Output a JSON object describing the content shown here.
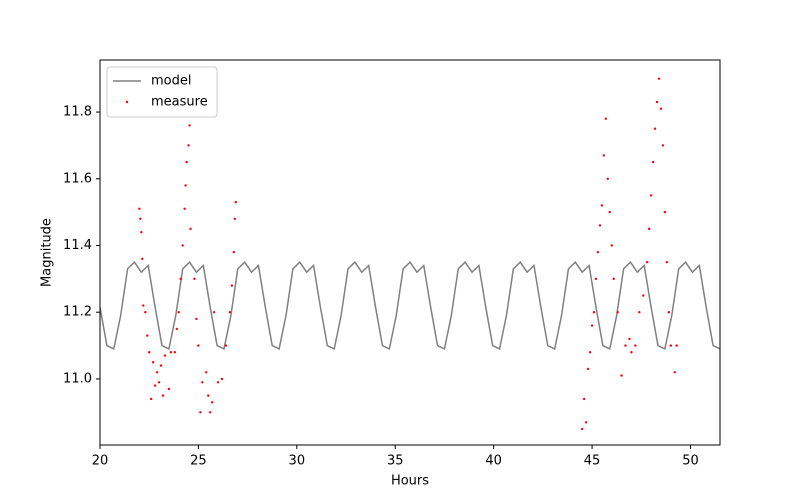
{
  "chart_data": {
    "type": "line",
    "xlabel": "Hours",
    "ylabel": "Magnitude",
    "xlim": [
      20,
      51.5
    ],
    "ylim": [
      10.802,
      11.956
    ],
    "xticks": [
      20,
      25,
      30,
      35,
      40,
      45,
      50
    ],
    "yticks": [
      {
        "value": 11.0,
        "label": "11.0"
      },
      {
        "value": 11.2,
        "label": "11.2"
      },
      {
        "value": 11.4,
        "label": "11.4"
      },
      {
        "value": 11.6,
        "label": "11.6"
      },
      {
        "value": 11.8,
        "label": "11.8"
      }
    ],
    "legend": "upper left",
    "series": [
      {
        "name": "model",
        "color": "#808080",
        "style": "line",
        "x": [
          20.0,
          20.35,
          20.7,
          21.05,
          21.4,
          21.75,
          22.1,
          22.45,
          22.8,
          23.15,
          23.5,
          23.85,
          24.2,
          24.55,
          24.9,
          25.25,
          25.6,
          25.95,
          26.3,
          26.65,
          27.0,
          27.35,
          27.7,
          28.05,
          28.4,
          28.75,
          29.1,
          29.45,
          29.8,
          30.15,
          30.5,
          30.85,
          31.2,
          31.55,
          31.9,
          32.25,
          32.6,
          32.95,
          33.3,
          33.65,
          34.0,
          34.35,
          34.7,
          35.05,
          35.4,
          35.75,
          36.1,
          36.45,
          36.8,
          37.15,
          37.5,
          37.85,
          38.2,
          38.55,
          38.9,
          39.25,
          39.6,
          39.95,
          40.3,
          40.65,
          41.0,
          41.35,
          41.7,
          42.05,
          42.4,
          42.75,
          43.1,
          43.45,
          43.8,
          44.15,
          44.5,
          44.85,
          45.2,
          45.55,
          45.9,
          46.25,
          46.6,
          46.95,
          47.3,
          47.65,
          48.0,
          48.35,
          48.7,
          49.05,
          49.4,
          49.75,
          50.1,
          50.45,
          50.8,
          51.15,
          51.5
        ],
        "values": [
          11.215,
          11.1,
          11.09,
          11.19,
          11.33,
          11.35,
          11.32,
          11.34,
          11.215,
          11.1,
          11.09,
          11.19,
          11.33,
          11.35,
          11.32,
          11.34,
          11.215,
          11.1,
          11.09,
          11.19,
          11.33,
          11.35,
          11.32,
          11.34,
          11.215,
          11.1,
          11.09,
          11.19,
          11.33,
          11.35,
          11.32,
          11.34,
          11.215,
          11.1,
          11.09,
          11.19,
          11.33,
          11.35,
          11.32,
          11.34,
          11.215,
          11.1,
          11.09,
          11.19,
          11.33,
          11.35,
          11.32,
          11.34,
          11.215,
          11.1,
          11.09,
          11.19,
          11.33,
          11.35,
          11.32,
          11.34,
          11.215,
          11.1,
          11.09,
          11.19,
          11.33,
          11.35,
          11.32,
          11.34,
          11.215,
          11.1,
          11.09,
          11.19,
          11.33,
          11.35,
          11.32,
          11.34,
          11.215,
          11.1,
          11.09,
          11.19,
          11.33,
          11.35,
          11.32,
          11.34,
          11.215,
          11.1,
          11.09,
          11.19,
          11.33,
          11.35,
          11.32,
          11.34,
          11.215,
          11.1,
          11.09
        ]
      },
      {
        "name": "measure",
        "color": "#ff0000",
        "style": "scatter",
        "x": [
          22.0,
          22.05,
          22.1,
          22.15,
          22.2,
          22.3,
          22.4,
          22.5,
          22.6,
          22.7,
          22.8,
          22.9,
          23.0,
          23.1,
          23.2,
          23.3,
          23.5,
          23.6,
          23.8,
          23.9,
          24.0,
          24.1,
          24.2,
          24.3,
          24.35,
          24.4,
          24.5,
          24.55,
          24.6,
          24.8,
          24.9,
          25.0,
          25.1,
          25.2,
          25.4,
          25.5,
          25.6,
          25.7,
          25.8,
          26.0,
          26.2,
          26.4,
          26.6,
          26.7,
          26.8,
          26.85,
          26.9,
          44.5,
          44.6,
          44.7,
          44.8,
          44.9,
          45.0,
          45.1,
          45.2,
          45.3,
          45.4,
          45.5,
          45.6,
          45.7,
          45.8,
          45.9,
          46.0,
          46.1,
          46.3,
          46.5,
          46.7,
          46.9,
          47.0,
          47.2,
          47.4,
          47.6,
          47.8,
          47.9,
          48.0,
          48.1,
          48.2,
          48.3,
          48.4,
          48.5,
          48.6,
          48.7,
          48.8,
          48.9,
          49.0,
          49.2,
          49.3
        ],
        "values": [
          11.51,
          11.48,
          11.44,
          11.36,
          11.22,
          11.2,
          11.13,
          11.08,
          10.94,
          11.05,
          10.98,
          11.02,
          10.99,
          11.04,
          10.95,
          11.07,
          10.97,
          11.08,
          11.08,
          11.15,
          11.2,
          11.3,
          11.4,
          11.51,
          11.58,
          11.65,
          11.7,
          11.76,
          11.45,
          11.3,
          11.18,
          11.1,
          10.9,
          10.99,
          11.02,
          10.95,
          10.9,
          10.93,
          11.2,
          10.99,
          11.0,
          11.1,
          11.2,
          11.28,
          11.38,
          11.48,
          11.53,
          10.85,
          10.94,
          10.87,
          11.03,
          11.08,
          11.16,
          11.2,
          11.3,
          11.38,
          11.46,
          11.52,
          11.67,
          11.78,
          11.6,
          11.5,
          11.4,
          11.3,
          11.2,
          11.01,
          11.1,
          11.12,
          11.08,
          11.1,
          11.2,
          11.25,
          11.35,
          11.45,
          11.55,
          11.65,
          11.75,
          11.83,
          11.9,
          11.81,
          11.7,
          11.5,
          11.35,
          11.2,
          11.1,
          11.02,
          11.1
        ]
      }
    ]
  }
}
